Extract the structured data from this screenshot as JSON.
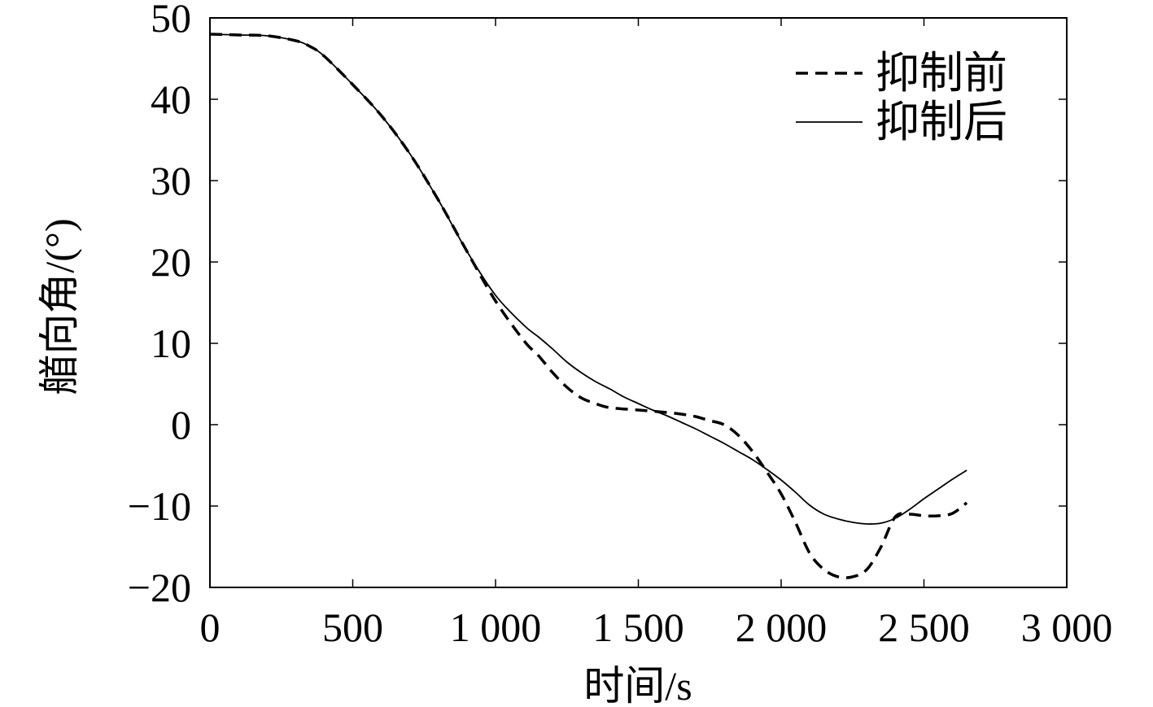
{
  "chart_data": {
    "type": "line",
    "xlabel": "时间/s",
    "ylabel": "艏向角/(°)",
    "xlim": [
      0,
      3000
    ],
    "ylim": [
      -20,
      50
    ],
    "x_ticks": [
      0,
      500,
      1000,
      1500,
      2000,
      2500,
      3000
    ],
    "x_tick_labels": [
      "0",
      "500",
      "1 000",
      "1 500",
      "2 000",
      "2 500",
      "3 000"
    ],
    "y_ticks": [
      -20,
      -10,
      0,
      10,
      20,
      30,
      40,
      50
    ],
    "y_tick_labels": [
      "−20",
      "−10",
      "0",
      "10",
      "20",
      "30",
      "40",
      "50"
    ],
    "grid": false,
    "legend_position": "top-right",
    "series": [
      {
        "name": "抑制前",
        "style": "dashed",
        "color": "#000000",
        "x": [
          0,
          100,
          200,
          300,
          350,
          400,
          500,
          600,
          700,
          800,
          900,
          1000,
          1100,
          1150,
          1200,
          1250,
          1300,
          1350,
          1400,
          1500,
          1600,
          1650,
          1700,
          1750,
          1800,
          1850,
          1900,
          1950,
          2000,
          2050,
          2100,
          2150,
          2200,
          2250,
          2300,
          2350,
          2400,
          2450,
          2500,
          2550,
          2600,
          2650
        ],
        "y": [
          48,
          47.9,
          47.8,
          47.2,
          46.5,
          45.3,
          41.8,
          38,
          33.3,
          27.6,
          21.3,
          15.2,
          10.3,
          8.5,
          6.4,
          4.6,
          3.3,
          2.6,
          2.1,
          1.8,
          1.5,
          1.3,
          1,
          0.5,
          0,
          -1.3,
          -3.3,
          -5.8,
          -8.5,
          -12,
          -15.8,
          -17.8,
          -18.7,
          -18.7,
          -17.8,
          -15,
          -11.3,
          -11,
          -11.2,
          -11.2,
          -10.9,
          -9.6
        ]
      },
      {
        "name": "抑制后",
        "style": "solid",
        "color": "#000000",
        "x": [
          0,
          100,
          200,
          300,
          350,
          400,
          500,
          600,
          700,
          800,
          900,
          1000,
          1100,
          1150,
          1200,
          1250,
          1300,
          1350,
          1400,
          1450,
          1500,
          1550,
          1600,
          1650,
          1700,
          1750,
          1800,
          1850,
          1900,
          1950,
          2000,
          2050,
          2100,
          2150,
          2200,
          2250,
          2300,
          2350,
          2400,
          2450,
          2500,
          2550,
          2600,
          2650
        ],
        "y": [
          48,
          47.9,
          47.8,
          47.2,
          46.5,
          45.3,
          41.8,
          38,
          33.3,
          27.6,
          21.3,
          15.9,
          12.2,
          10.8,
          9.3,
          7.7,
          6.4,
          5.3,
          4.4,
          3.4,
          2.6,
          1.8,
          1.1,
          0.3,
          -0.5,
          -1.4,
          -2.3,
          -3.3,
          -4.3,
          -5.5,
          -6.8,
          -8.3,
          -9.9,
          -11,
          -11.6,
          -12,
          -12.2,
          -12.1,
          -11.5,
          -10.4,
          -9.1,
          -7.9,
          -6.7,
          -5.6
        ]
      }
    ]
  }
}
